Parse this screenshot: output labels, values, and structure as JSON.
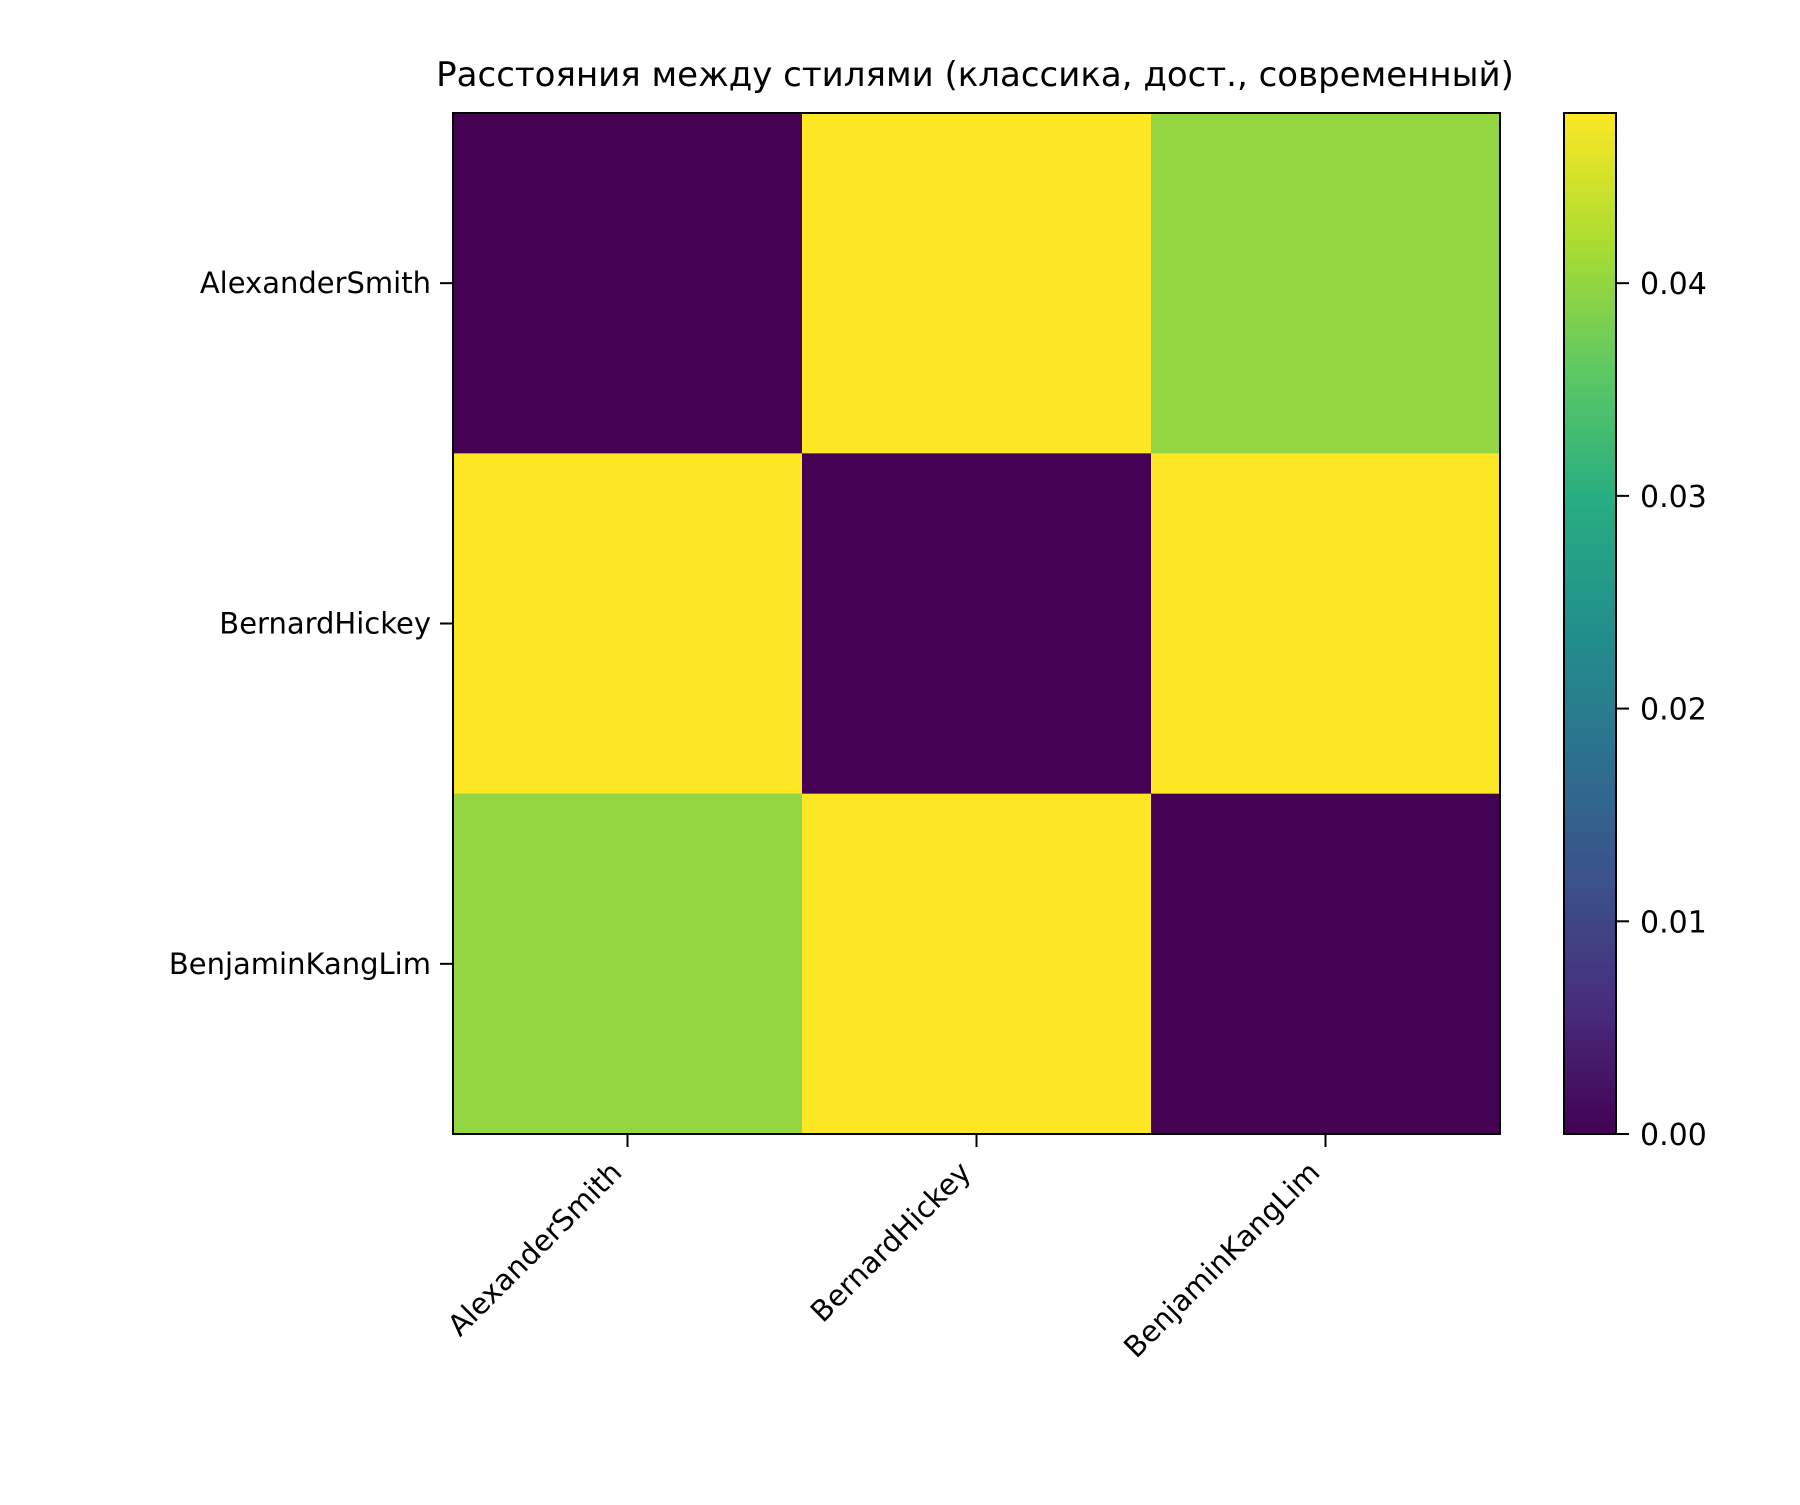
{
  "chart_data": {
    "type": "heatmap",
    "title": "Расстояния между стилями (классика, дост., современный)",
    "xlabel": "",
    "ylabel": "",
    "x_categories": [
      "AlexanderSmith",
      "BernardHickey",
      "BenjaminKangLim"
    ],
    "y_categories": [
      "AlexanderSmith",
      "BernardHickey",
      "BenjaminKangLim"
    ],
    "values": [
      [
        0.0,
        0.048,
        0.04
      ],
      [
        0.048,
        0.0,
        0.048
      ],
      [
        0.04,
        0.048,
        0.0
      ]
    ],
    "colormap": "viridis",
    "colorbar": {
      "range": [
        0.0,
        0.048
      ],
      "ticks": [
        0.0,
        0.01,
        0.02,
        0.03,
        0.04
      ],
      "tick_labels": [
        "0.00",
        "0.01",
        "0.02",
        "0.03",
        "0.04"
      ]
    },
    "grid": false
  }
}
